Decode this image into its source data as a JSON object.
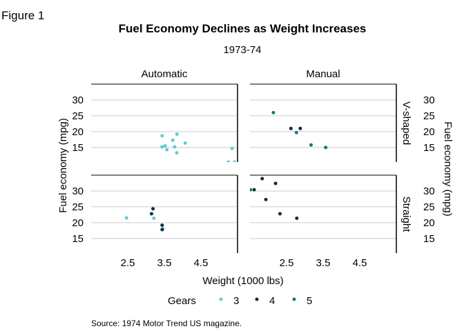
{
  "figure_label": "Figure 1",
  "chart_data": {
    "type": "scatter",
    "title": "Fuel Economy Declines as Weight Increases",
    "subtitle": "1973-74",
    "xlabel": "Weight (1000 lbs)",
    "ylabel": "Fuel economy (mpg)",
    "ylabel_right": "Fuel economy (mpg)",
    "caption": "Source: 1974 Motor Trend US magazine.",
    "xlim": [
      1.5,
      5.5
    ],
    "ylim": [
      10.4,
      35.0
    ],
    "x_ticks": [
      2.5,
      3.5,
      4.5
    ],
    "x_tick_labels": [
      "2.5",
      "3.5",
      "4.5"
    ],
    "y_ticks": [
      15,
      20,
      25,
      30
    ],
    "y_tick_labels": [
      "15",
      "20",
      "25",
      "30"
    ],
    "grid": true,
    "columns": [
      "Automatic",
      "Manual"
    ],
    "rows": [
      "V-shaped",
      "Straight"
    ],
    "legend": {
      "title": "Gears",
      "position": "bottom",
      "entries": [
        {
          "label": "3",
          "color": "#66c9d6"
        },
        {
          "label": "4",
          "color": "#0b2e36"
        },
        {
          "label": "5",
          "color": "#137a78"
        }
      ]
    },
    "panels": [
      {
        "column": "Automatic",
        "row": "V-shaped",
        "points": [
          {
            "x": 3.44,
            "y": 18.7,
            "gear": 3
          },
          {
            "x": 3.57,
            "y": 14.3,
            "gear": 3
          },
          {
            "x": 4.07,
            "y": 16.4,
            "gear": 3
          },
          {
            "x": 3.73,
            "y": 17.3,
            "gear": 3
          },
          {
            "x": 3.78,
            "y": 15.2,
            "gear": 3
          },
          {
            "x": 5.25,
            "y": 10.4,
            "gear": 3
          },
          {
            "x": 5.42,
            "y": 10.4,
            "gear": 3
          },
          {
            "x": 5.35,
            "y": 14.7,
            "gear": 3
          },
          {
            "x": 3.52,
            "y": 15.5,
            "gear": 3
          },
          {
            "x": 3.435,
            "y": 15.2,
            "gear": 3
          },
          {
            "x": 3.84,
            "y": 13.3,
            "gear": 3
          },
          {
            "x": 3.845,
            "y": 19.2,
            "gear": 3
          }
        ]
      },
      {
        "column": "Manual",
        "row": "V-shaped",
        "points": [
          {
            "x": 2.62,
            "y": 21.0,
            "gear": 4
          },
          {
            "x": 2.875,
            "y": 21.0,
            "gear": 4
          },
          {
            "x": 2.14,
            "y": 26.0,
            "gear": 5
          },
          {
            "x": 3.17,
            "y": 15.8,
            "gear": 5
          },
          {
            "x": 2.77,
            "y": 19.7,
            "gear": 5
          },
          {
            "x": 3.57,
            "y": 15.0,
            "gear": 5
          }
        ]
      },
      {
        "column": "Automatic",
        "row": "Straight",
        "points": [
          {
            "x": 3.215,
            "y": 21.4,
            "gear": 3
          },
          {
            "x": 3.46,
            "y": 18.1,
            "gear": 3
          },
          {
            "x": 2.465,
            "y": 21.5,
            "gear": 3
          },
          {
            "x": 3.19,
            "y": 24.4,
            "gear": 4
          },
          {
            "x": 3.15,
            "y": 22.8,
            "gear": 4
          },
          {
            "x": 3.44,
            "y": 19.2,
            "gear": 4
          },
          {
            "x": 3.44,
            "y": 17.8,
            "gear": 4
          }
        ]
      },
      {
        "column": "Manual",
        "row": "Straight",
        "points": [
          {
            "x": 2.32,
            "y": 22.8,
            "gear": 4
          },
          {
            "x": 2.2,
            "y": 32.4,
            "gear": 4
          },
          {
            "x": 1.615,
            "y": 30.4,
            "gear": 4
          },
          {
            "x": 1.835,
            "y": 33.9,
            "gear": 4
          },
          {
            "x": 1.935,
            "y": 27.3,
            "gear": 4
          },
          {
            "x": 2.78,
            "y": 21.4,
            "gear": 4
          },
          {
            "x": 1.513,
            "y": 30.4,
            "gear": 5
          }
        ]
      }
    ]
  }
}
